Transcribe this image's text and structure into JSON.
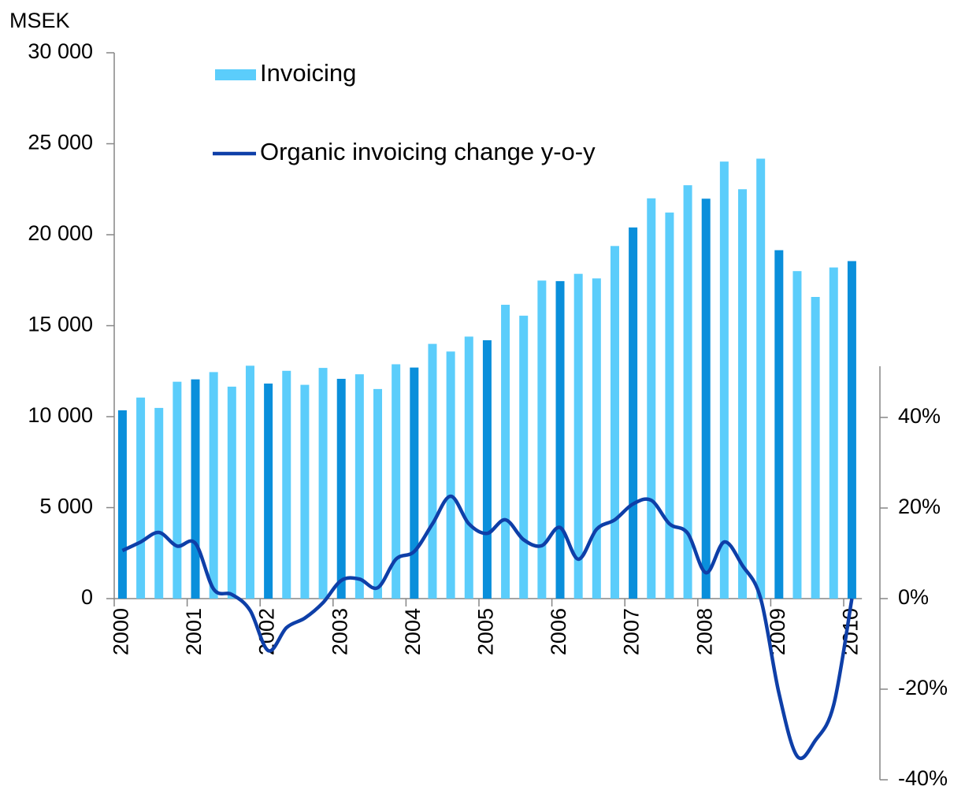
{
  "chart_data": {
    "type": "bar",
    "y_label": "MSEK",
    "categories": [
      "2000",
      null,
      null,
      null,
      "2001",
      null,
      null,
      null,
      "2002",
      null,
      null,
      null,
      "2003",
      null,
      null,
      null,
      "2004",
      null,
      null,
      null,
      "2005",
      null,
      null,
      null,
      "2006",
      null,
      null,
      null,
      "2007",
      null,
      null,
      null,
      "2008",
      null,
      null,
      null,
      "2009",
      null,
      null,
      null,
      "2010"
    ],
    "series": [
      {
        "name": "Invoicing",
        "type": "bar",
        "color": "#5bcdfb",
        "colors": [
          "#0a8fdb",
          "#5bcdfb",
          "#5bcdfb",
          "#5bcdfb",
          "#0a8fdb",
          "#5bcdfb",
          "#5bcdfb",
          "#5bcdfb",
          "#0a8fdb",
          "#5bcdfb",
          "#5bcdfb",
          "#5bcdfb",
          "#0a8fdb",
          "#5bcdfb",
          "#5bcdfb",
          "#5bcdfb",
          "#0a8fdb",
          "#5bcdfb",
          "#5bcdfb",
          "#5bcdfb",
          "#0a8fdb",
          "#5bcdfb",
          "#5bcdfb",
          "#5bcdfb",
          "#0a8fdb",
          "#5bcdfb",
          "#5bcdfb",
          "#5bcdfb",
          "#0a8fdb",
          "#5bcdfb",
          "#5bcdfb",
          "#5bcdfb",
          "#0a8fdb",
          "#5bcdfb",
          "#5bcdfb",
          "#5bcdfb",
          "#0a8fdb",
          "#5bcdfb",
          "#5bcdfb",
          "#5bcdfb",
          "#0a8fdb"
        ],
        "values": [
          10350,
          11050,
          10480,
          11920,
          12050,
          12450,
          11650,
          12800,
          11820,
          12520,
          11750,
          12680,
          12080,
          12330,
          11520,
          12880,
          12700,
          14000,
          13580,
          14400,
          14200,
          16150,
          15550,
          17480,
          17450,
          17850,
          17600,
          19380,
          20400,
          22000,
          21220,
          22720,
          21980,
          24020,
          22500,
          24180,
          19150,
          18000,
          16580,
          18200,
          18550
        ]
      },
      {
        "name": "Organic invoicing change y-o-y",
        "type": "line",
        "axis": "y2",
        "color": "#0e3fa8",
        "values": [
          10.6,
          12.5,
          14.6,
          11.6,
          12.2,
          2.1,
          0.9,
          -2.6,
          -11.5,
          -6.4,
          -4.3,
          -0.9,
          4.0,
          4.3,
          2.4,
          8.7,
          10.4,
          16.5,
          22.6,
          16.5,
          14.4,
          17.4,
          13.0,
          11.7,
          15.7,
          8.7,
          15.3,
          17.4,
          20.9,
          21.7,
          16.5,
          14.4,
          5.7,
          12.5,
          7.3,
          0,
          -20.9,
          -34.8,
          -31.3,
          -23.5,
          0
        ]
      }
    ],
    "ylim": [
      0,
      30000
    ],
    "yticks": [
      0,
      {
        "value": 5000,
        "label": "5 000"
      },
      {
        "value": 10000,
        "label": "10 000"
      },
      {
        "value": 15000,
        "label": "15 000"
      },
      {
        "value": 20000,
        "label": "20 000"
      },
      {
        "value": 25000,
        "label": "25 000"
      },
      {
        "value": 30000,
        "label": "30 000"
      }
    ],
    "y2lim": [
      -40,
      51.3
    ],
    "y2ticks": [
      {
        "value": -40,
        "label": "-40%"
      },
      {
        "value": -20,
        "label": "-20%"
      },
      {
        "value": 0,
        "label": "0%"
      },
      {
        "value": 20,
        "label": "20%"
      },
      {
        "value": 40,
        "label": "40%"
      }
    ],
    "legend": "upper left"
  }
}
